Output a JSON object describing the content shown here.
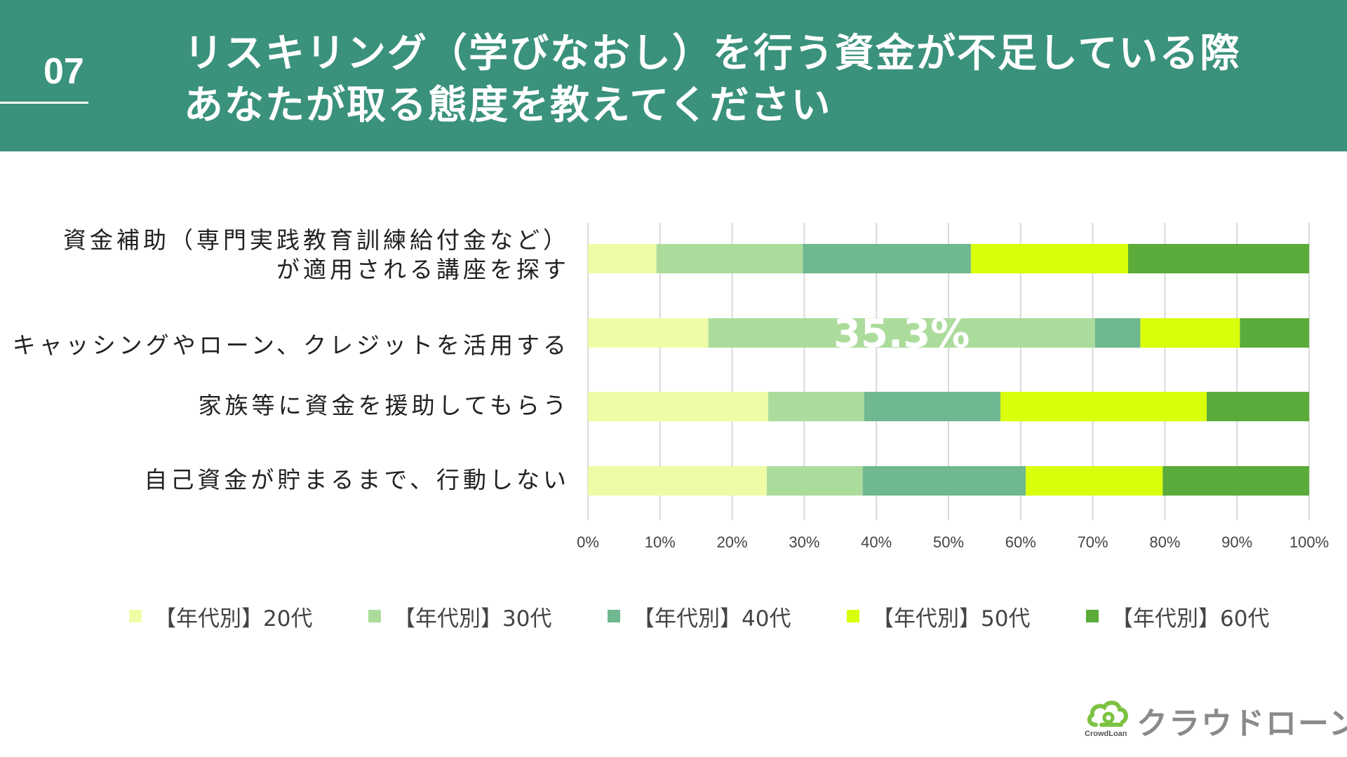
{
  "header": {
    "number": "07",
    "title_line1": "リスキリング（学びなおし）を行う資金が不足している際",
    "title_line2": "あなたが取る態度を教えてください"
  },
  "chart_data": {
    "type": "bar",
    "orientation": "horizontal",
    "stacked": true,
    "percent_stacked": true,
    "categories": [
      "資金補助（専門実践教育訓練給付金など）が適用される講座を探す",
      "キャッシングやローン、クレジットを活用する",
      "家族等に資金を援助してもらう",
      "自己資金が貯まるまで、行動しない"
    ],
    "category_lines": [
      [
        "資金補助（専門実践教育訓練給付金など）",
        "が適用される講座を探す"
      ],
      [
        "キャッシングやローン、クレジットを活用する"
      ],
      [
        "家族等に資金を援助してもらう"
      ],
      [
        "自己資金が貯まるまで、行動しない"
      ]
    ],
    "series": [
      {
        "name": "【年代別】20代",
        "color": "#eefca6",
        "values": [
          9.5,
          16.7,
          25.0,
          24.8
        ]
      },
      {
        "name": "【年代別】30代",
        "color": "#acdc9c",
        "values": [
          20.3,
          53.6,
          13.3,
          13.3
        ]
      },
      {
        "name": "【年代別】40代",
        "color": "#6fb890",
        "values": [
          23.3,
          6.3,
          18.9,
          22.6
        ]
      },
      {
        "name": "【年代別】50代",
        "color": "#daff0a",
        "values": [
          21.8,
          13.8,
          28.6,
          19.0
        ]
      },
      {
        "name": "【年代別】60代",
        "color": "#5aab3a",
        "values": [
          25.1,
          9.6,
          14.2,
          20.3
        ]
      }
    ],
    "annotation": {
      "text": "35.3%",
      "category_index": 1
    },
    "x_ticks": [
      "0%",
      "10%",
      "20%",
      "30%",
      "40%",
      "50%",
      "60%",
      "70%",
      "80%",
      "90%",
      "100%"
    ],
    "xlim": [
      0,
      100
    ],
    "grid": true,
    "legend_position": "bottom"
  },
  "brand": {
    "name": "クラウドローン",
    "sub": "CrowdLoan",
    "accent": "#7cc242"
  },
  "colors": {
    "header_bg": "#3a917c",
    "gridline": "#d9d9d9"
  }
}
